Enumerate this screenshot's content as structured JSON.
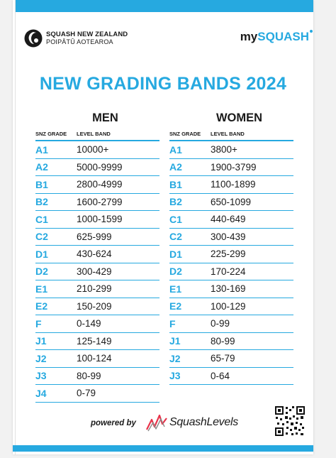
{
  "header": {
    "org_name": "SQUASH NEW ZEALAND",
    "org_subname": "POIPĀTŪ AOTEAROA",
    "brand_prefix": "my",
    "brand_suffix": "SQUASH"
  },
  "title": "NEW GRADING BANDS 2024",
  "men": {
    "heading": "MEN",
    "col_grade": "SNZ GRADE",
    "col_band": "LEVEL BAND",
    "rows": [
      {
        "grade": "A1",
        "band": "10000+"
      },
      {
        "grade": "A2",
        "band": "5000-9999"
      },
      {
        "grade": "B1",
        "band": "2800-4999"
      },
      {
        "grade": "B2",
        "band": "1600-2799"
      },
      {
        "grade": "C1",
        "band": "1000-1599"
      },
      {
        "grade": "C2",
        "band": "625-999"
      },
      {
        "grade": "D1",
        "band": "430-624"
      },
      {
        "grade": "D2",
        "band": "300-429"
      },
      {
        "grade": "E1",
        "band": "210-299"
      },
      {
        "grade": "E2",
        "band": "150-209"
      },
      {
        "grade": "F",
        "band": "0-149"
      },
      {
        "grade": "J1",
        "band": "125-149"
      },
      {
        "grade": "J2",
        "band": "100-124"
      },
      {
        "grade": "J3",
        "band": "80-99"
      },
      {
        "grade": "J4",
        "band": "0-79"
      }
    ]
  },
  "women": {
    "heading": "WOMEN",
    "col_grade": "SNZ GRADE",
    "col_band": "LEVEL BAND",
    "rows": [
      {
        "grade": "A1",
        "band": "3800+"
      },
      {
        "grade": "A2",
        "band": "1900-3799"
      },
      {
        "grade": "B1",
        "band": "1100-1899"
      },
      {
        "grade": "B2",
        "band": "650-1099"
      },
      {
        "grade": "C1",
        "band": "440-649"
      },
      {
        "grade": "C2",
        "band": "300-439"
      },
      {
        "grade": "D1",
        "band": "225-299"
      },
      {
        "grade": "D2",
        "band": "170-224"
      },
      {
        "grade": "E1",
        "band": "130-169"
      },
      {
        "grade": "E2",
        "band": "100-129"
      },
      {
        "grade": "F",
        "band": "0-99"
      },
      {
        "grade": "J1",
        "band": "80-99"
      },
      {
        "grade": "J2",
        "band": "65-79"
      },
      {
        "grade": "J3",
        "band": "0-64"
      }
    ]
  },
  "footer": {
    "powered_by": "powered by",
    "sponsor_name": "SquashLevels"
  },
  "colors": {
    "accent": "#26a9e0",
    "text": "#1a1a1a"
  }
}
